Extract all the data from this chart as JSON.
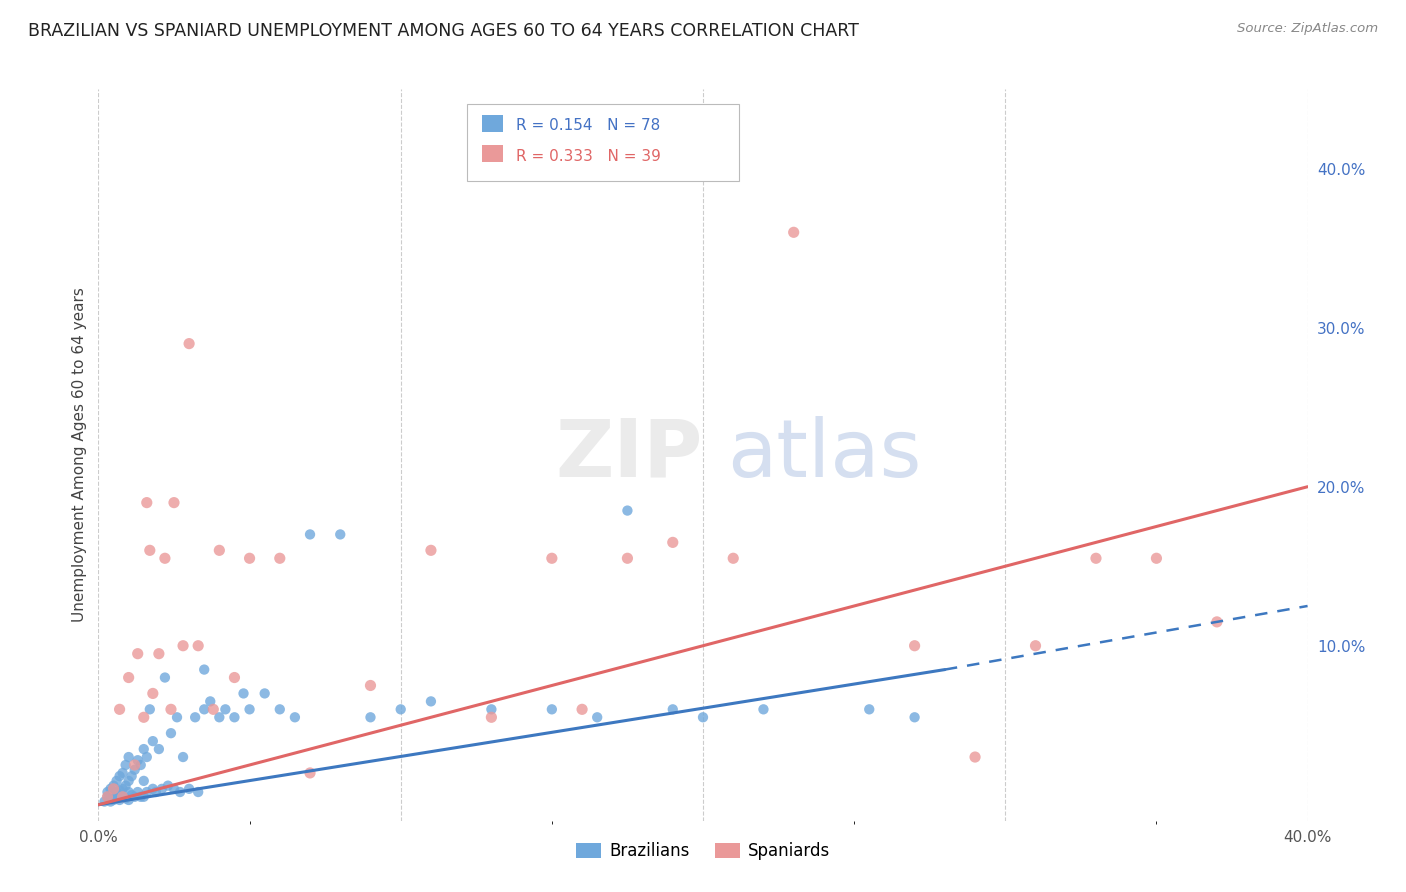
{
  "title": "BRAZILIAN VS SPANIARD UNEMPLOYMENT AMONG AGES 60 TO 64 YEARS CORRELATION CHART",
  "source": "Source: ZipAtlas.com",
  "ylabel": "Unemployment Among Ages 60 to 64 years",
  "xlim": [
    0.0,
    0.4
  ],
  "ylim": [
    -0.01,
    0.45
  ],
  "brazil_color": "#6fa8dc",
  "spain_color": "#ea9999",
  "brazil_line_color": "#3d78c0",
  "spain_line_color": "#e06666",
  "brazil_r": 0.154,
  "spain_r": 0.333,
  "brazil_n": 78,
  "spain_n": 39,
  "brazil_line": [
    0.0,
    0.0,
    0.28,
    0.085
  ],
  "brazil_dash": [
    0.28,
    0.085,
    0.4,
    0.125
  ],
  "spain_line": [
    0.0,
    0.0,
    0.4,
    0.2
  ],
  "brazil_points_x": [
    0.002,
    0.003,
    0.003,
    0.004,
    0.004,
    0.005,
    0.005,
    0.005,
    0.006,
    0.006,
    0.006,
    0.007,
    0.007,
    0.007,
    0.008,
    0.008,
    0.008,
    0.009,
    0.009,
    0.009,
    0.01,
    0.01,
    0.01,
    0.01,
    0.011,
    0.011,
    0.012,
    0.012,
    0.013,
    0.013,
    0.014,
    0.014,
    0.015,
    0.015,
    0.015,
    0.016,
    0.016,
    0.017,
    0.018,
    0.018,
    0.019,
    0.02,
    0.021,
    0.022,
    0.023,
    0.024,
    0.025,
    0.026,
    0.027,
    0.028,
    0.03,
    0.032,
    0.033,
    0.035,
    0.035,
    0.037,
    0.04,
    0.042,
    0.045,
    0.048,
    0.05,
    0.055,
    0.06,
    0.065,
    0.07,
    0.08,
    0.09,
    0.1,
    0.11,
    0.13,
    0.15,
    0.165,
    0.175,
    0.19,
    0.2,
    0.22,
    0.255,
    0.27
  ],
  "brazil_points_y": [
    0.002,
    0.005,
    0.008,
    0.002,
    0.01,
    0.003,
    0.006,
    0.012,
    0.004,
    0.008,
    0.015,
    0.003,
    0.009,
    0.018,
    0.005,
    0.01,
    0.02,
    0.004,
    0.012,
    0.025,
    0.003,
    0.008,
    0.015,
    0.03,
    0.006,
    0.018,
    0.005,
    0.022,
    0.008,
    0.028,
    0.005,
    0.025,
    0.005,
    0.015,
    0.035,
    0.008,
    0.03,
    0.06,
    0.01,
    0.04,
    0.008,
    0.035,
    0.01,
    0.08,
    0.012,
    0.045,
    0.01,
    0.055,
    0.008,
    0.03,
    0.01,
    0.055,
    0.008,
    0.06,
    0.085,
    0.065,
    0.055,
    0.06,
    0.055,
    0.07,
    0.06,
    0.07,
    0.06,
    0.055,
    0.17,
    0.17,
    0.055,
    0.06,
    0.065,
    0.06,
    0.06,
    0.055,
    0.185,
    0.06,
    0.055,
    0.06,
    0.06,
    0.055
  ],
  "spain_points_x": [
    0.003,
    0.005,
    0.007,
    0.008,
    0.01,
    0.012,
    0.013,
    0.015,
    0.016,
    0.017,
    0.018,
    0.02,
    0.022,
    0.024,
    0.025,
    0.028,
    0.03,
    0.033,
    0.038,
    0.04,
    0.045,
    0.05,
    0.06,
    0.07,
    0.09,
    0.11,
    0.13,
    0.15,
    0.16,
    0.175,
    0.19,
    0.21,
    0.23,
    0.27,
    0.29,
    0.31,
    0.33,
    0.35,
    0.37
  ],
  "spain_points_y": [
    0.005,
    0.01,
    0.06,
    0.005,
    0.08,
    0.025,
    0.095,
    0.055,
    0.19,
    0.16,
    0.07,
    0.095,
    0.155,
    0.06,
    0.19,
    0.1,
    0.29,
    0.1,
    0.06,
    0.16,
    0.08,
    0.155,
    0.155,
    0.02,
    0.075,
    0.16,
    0.055,
    0.155,
    0.06,
    0.155,
    0.165,
    0.155,
    0.36,
    0.1,
    0.03,
    0.1,
    0.155,
    0.155,
    0.115
  ]
}
